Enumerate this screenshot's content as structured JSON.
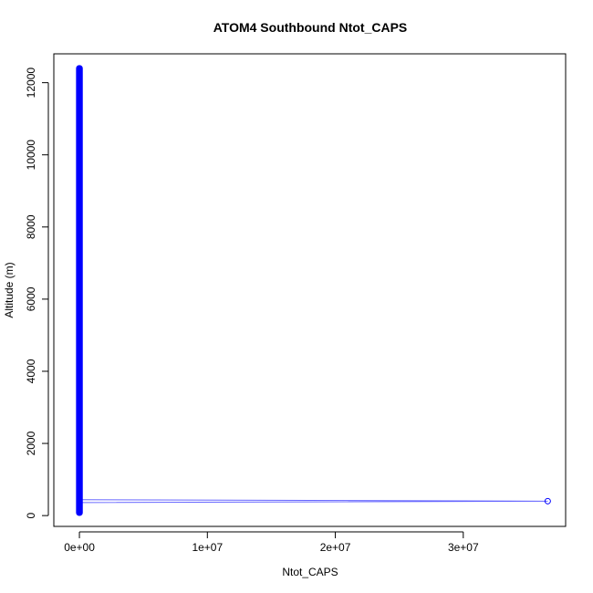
{
  "chart_data": {
    "type": "scatter",
    "title": "ATOM4 Southbound Ntot_CAPS",
    "xlabel": "Ntot_CAPS",
    "ylabel": "Altitude (m)",
    "xlim": [
      -2000000,
      38000000
    ],
    "ylim": [
      -300,
      12800
    ],
    "x_ticks": [
      0,
      10000000,
      20000000,
      30000000
    ],
    "x_tick_labels": [
      "0e+00",
      "1e+07",
      "2e+07",
      "3e+07"
    ],
    "y_ticks": [
      0,
      2000,
      4000,
      6000,
      8000,
      10000,
      12000
    ],
    "y_tick_labels": [
      "0",
      "2000",
      "4000",
      "6000",
      "8000",
      "10000",
      "12000"
    ],
    "series": [
      {
        "marker": "open-circle",
        "color": "#0000ff",
        "dense_column": {
          "x": 0,
          "y_min": 80,
          "y_max": 12400
        },
        "points": [
          {
            "x": 300000,
            "y": 440
          },
          {
            "x": 36600000,
            "y": 400
          },
          {
            "x": 300000,
            "y": 360
          }
        ]
      }
    ],
    "grid": false
  }
}
